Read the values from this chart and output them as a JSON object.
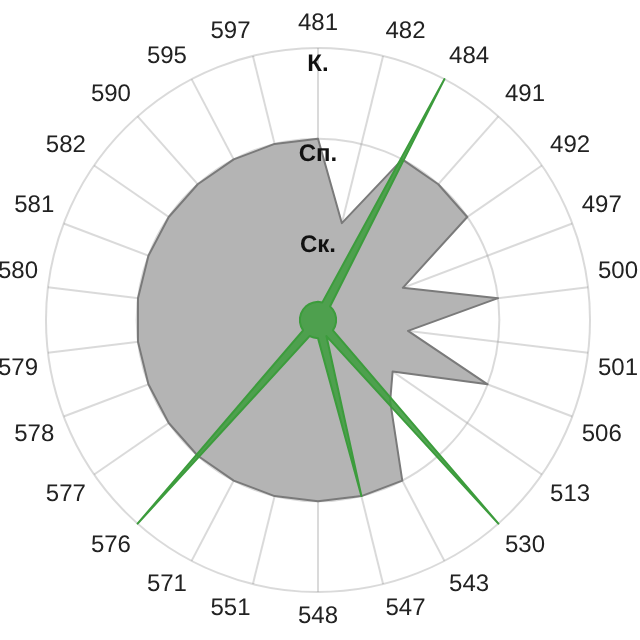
{
  "chart_data": {
    "type": "radar",
    "categories": [
      "481",
      "482",
      "484",
      "491",
      "492",
      "497",
      "500",
      "501",
      "506",
      "513",
      "530",
      "543",
      "547",
      "548",
      "551",
      "571",
      "576",
      "577",
      "578",
      "579",
      "580",
      "581",
      "582",
      "590",
      "595",
      "597"
    ],
    "series": [
      {
        "color": "#b4b4b4",
        "values": [
          2,
          1.1,
          2,
          2,
          2,
          1,
          2,
          1,
          2,
          1,
          1.2,
          2,
          2,
          2,
          2,
          2,
          2,
          2,
          2,
          2,
          2,
          2,
          2,
          2,
          2,
          2
        ]
      },
      {
        "color": "#3c9c3c",
        "values": [
          0.2,
          0.2,
          3,
          0.2,
          0.2,
          0.2,
          0.2,
          0.2,
          0.2,
          0.2,
          3,
          0.2,
          2,
          0.2,
          0.2,
          0.2,
          3,
          0.2,
          0.2,
          0.2,
          0.2,
          0.2,
          0.2,
          0.2,
          0.2,
          0.2
        ]
      }
    ],
    "ylim": [
      0,
      3
    ],
    "yticks": [
      {
        "value": 1,
        "label": "Ск."
      },
      {
        "value": 2,
        "label": "Сп."
      },
      {
        "value": 3,
        "label": "К."
      }
    ],
    "grid": true,
    "legend": false,
    "marker": "none"
  }
}
